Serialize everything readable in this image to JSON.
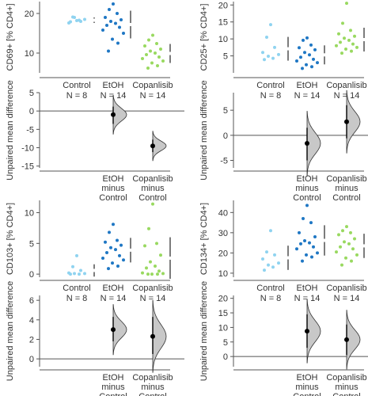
{
  "colors": {
    "control": "#8fd3f0",
    "etoh": "#1f77c4",
    "copanlisib": "#99d960",
    "axis": "#555555",
    "text": "#333333",
    "dist_fill": "#c8c8c8",
    "dist_stroke": "#333333",
    "errorbar": "#444444"
  },
  "chart_data": [
    {
      "type": "estimation-plot",
      "panel": "CD69",
      "ylabel": "CD69+ [% CD4+]",
      "ylim": [
        5,
        23
      ],
      "yticks": [
        10,
        20
      ],
      "groups": [
        {
          "name": "Control",
          "n_label": "N = 8",
          "values": [
            18.2,
            19.1,
            18.0,
            17.6,
            18.5,
            19.0,
            18.3,
            17.9
          ],
          "mean": 18.3,
          "sd": 0.7
        },
        {
          "name": "EtOH",
          "n_label": "N = 14",
          "values": [
            22.4,
            21.0,
            20.0,
            19.0,
            18.4,
            18.0,
            17.5,
            17.0,
            16.5,
            15.8,
            15.0,
            13.5,
            12.5,
            10.5
          ],
          "mean": 17.2,
          "sd": 3.5
        },
        {
          "name": "Copanlisib",
          "n_label": "N = 14",
          "values": [
            14.5,
            13.3,
            12.4,
            11.8,
            11.0,
            10.5,
            10.0,
            9.6,
            9.0,
            8.6,
            8.0,
            7.5,
            6.8,
            6.2
          ],
          "mean": 9.9,
          "sd": 2.4
        }
      ],
      "diff_ylabel": "Unpaired mean difference",
      "diff_ylim": [
        -15.5,
        5
      ],
      "diff_yticks": [
        5,
        0,
        -5,
        -10,
        -15
      ],
      "diffs": [
        {
          "label_lines": [
            "EtOH",
            "minus",
            "Control"
          ],
          "mean": -1.0,
          "ci": [
            -3.5,
            1.2
          ]
        },
        {
          "label_lines": [
            "Copanlisib",
            "minus",
            "Control"
          ],
          "mean": -9.5,
          "ci": [
            -11.2,
            -7.8
          ]
        }
      ]
    },
    {
      "type": "estimation-plot",
      "panel": "CD25",
      "ylabel": "CD25+ [% CD4+]",
      "ylim": [
        0,
        21
      ],
      "yticks": [
        5,
        10,
        15,
        20
      ],
      "groups": [
        {
          "name": "Control",
          "n_label": "N = 8",
          "values": [
            14.2,
            10.5,
            7.5,
            6.0,
            5.4,
            4.9,
            4.3,
            3.9
          ],
          "mean": 7.1,
          "sd": 3.5
        },
        {
          "name": "EtOH",
          "n_label": "N = 14",
          "values": [
            10.3,
            9.6,
            8.2,
            7.4,
            6.8,
            6.0,
            5.3,
            4.6,
            4.0,
            3.5,
            3.0,
            2.4,
            1.8,
            1.3
          ],
          "mean": 5.3,
          "sd": 2.8
        },
        {
          "name": "Copanlisib",
          "n_label": "N = 14",
          "values": [
            20.5,
            14.6,
            12.5,
            11.5,
            10.8,
            10.2,
            9.6,
            9.0,
            8.5,
            8.0,
            7.5,
            7.0,
            6.4,
            5.8
          ],
          "mean": 9.8,
          "sd": 3.5
        }
      ],
      "diff_ylabel": "Unpaired mean difference",
      "diff_ylim": [
        -6.5,
        8.5
      ],
      "diff_yticks": [
        5,
        0,
        -5
      ],
      "diffs": [
        {
          "label_lines": [
            "EtOH",
            "minus",
            "Control"
          ],
          "mean": -1.6,
          "ci": [
            -5.0,
            1.5
          ]
        },
        {
          "label_lines": [
            "Copanlisib",
            "minus",
            "Control"
          ],
          "mean": 2.7,
          "ci": [
            -0.6,
            6.0
          ]
        }
      ]
    },
    {
      "type": "estimation-plot",
      "panel": "CD103",
      "ylabel": "CD103+ [% CD4+]",
      "ylim": [
        -0.5,
        12
      ],
      "yticks": [
        0,
        5,
        10
      ],
      "groups": [
        {
          "name": "Control",
          "n_label": "N = 8",
          "values": [
            3.0,
            1.2,
            0.6,
            0.2,
            0.1,
            0.1,
            0.0,
            0.0
          ],
          "mean": 0.6,
          "sd": 1.0
        },
        {
          "name": "EtOH",
          "n_label": "N = 14",
          "values": [
            8.1,
            6.8,
            5.5,
            5.2,
            4.7,
            4.3,
            4.0,
            3.5,
            3.0,
            2.6,
            2.3,
            1.8,
            1.3,
            0.9
          ],
          "mean": 3.9,
          "sd": 2.0
        },
        {
          "name": "Copanlisib",
          "n_label": "N = 14",
          "values": [
            11.4,
            7.4,
            5.0,
            4.6,
            3.1,
            2.0,
            1.3,
            1.0,
            0.5,
            0.2,
            0.1,
            0.0,
            0.0,
            0.0
          ],
          "mean": 2.6,
          "sd": 3.4
        }
      ],
      "diff_ylabel": "Unpaired mean difference",
      "diff_ylim": [
        -0.8,
        6.5
      ],
      "diff_yticks": [
        0,
        2,
        4,
        6
      ],
      "diffs": [
        {
          "label_lines": [
            "EtOH",
            "minus",
            "Control"
          ],
          "mean": 3.0,
          "ci": [
            1.8,
            4.3
          ]
        },
        {
          "label_lines": [
            "Copanlisib",
            "minus",
            "Control"
          ],
          "mean": 2.3,
          "ci": [
            0.5,
            4.3
          ]
        }
      ]
    },
    {
      "type": "estimation-plot",
      "panel": "CD134",
      "ylabel": "CD134+ [% CD4+]",
      "ylim": [
        8,
        46
      ],
      "yticks": [
        10,
        20,
        30,
        40
      ],
      "groups": [
        {
          "name": "Control",
          "n_label": "N = 8",
          "values": [
            31.0,
            20.5,
            19.0,
            17.0,
            15.0,
            14.0,
            13.0,
            11.5
          ],
          "mean": 17.6,
          "sd": 6.0
        },
        {
          "name": "EtOH",
          "n_label": "N = 14",
          "values": [
            43.5,
            37.0,
            35.0,
            30.0,
            28.0,
            26.0,
            25.0,
            24.5,
            23.0,
            22.0,
            20.0,
            19.0,
            18.0,
            16.0
          ],
          "mean": 26.2,
          "sd": 7.5
        },
        {
          "name": "Copanlisib",
          "n_label": "N = 14",
          "values": [
            33.0,
            31.0,
            30.0,
            29.0,
            27.0,
            25.5,
            24.5,
            23.0,
            22.0,
            20.5,
            19.0,
            17.5,
            16.0,
            14.0
          ],
          "mean": 23.5,
          "sd": 6.0
        }
      ],
      "diff_ylabel": "Unpaired mean difference",
      "diff_ylim": [
        -3.5,
        21
      ],
      "diff_yticks": [
        0,
        5,
        10,
        15,
        20
      ],
      "diffs": [
        {
          "label_lines": [
            "EtOH",
            "minus",
            "Control"
          ],
          "mean": 8.7,
          "ci": [
            3.0,
            14.5
          ]
        },
        {
          "label_lines": [
            "Copanlisib",
            "minus",
            "Control"
          ],
          "mean": 5.8,
          "ci": [
            0.5,
            11.0
          ]
        }
      ]
    }
  ]
}
